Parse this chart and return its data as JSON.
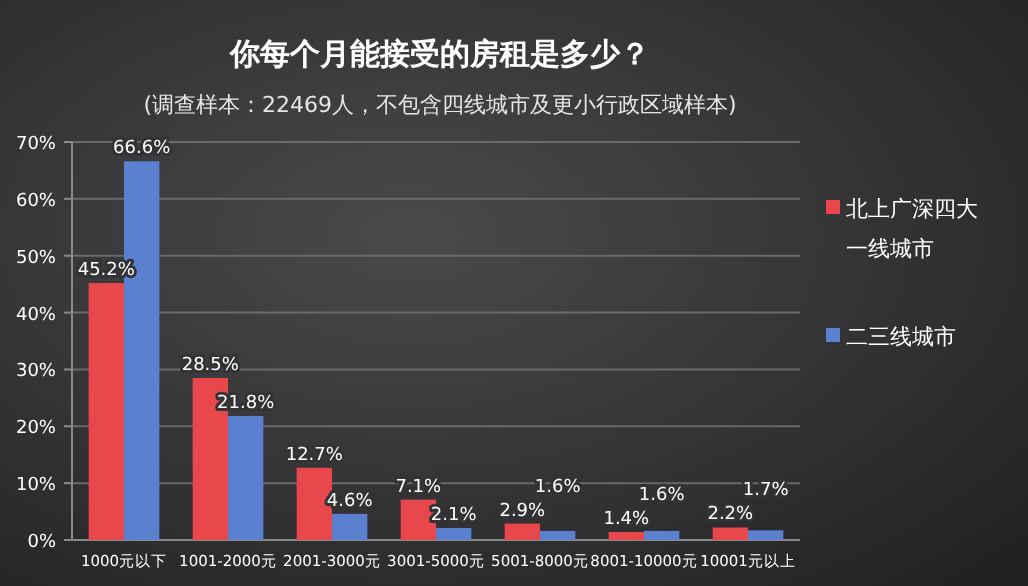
{
  "chart_data": {
    "type": "bar",
    "title": "你每个月能接受的房租是多少？",
    "subtitle": "(调查样本：22469人，不包含四线城市及更小行政区域样本)",
    "categories": [
      "1000元以下",
      "1001-2000元",
      "2001-3000元",
      "3001-5000元",
      "5001-8000元",
      "8001-10000元",
      "10001元以上"
    ],
    "series": [
      {
        "name": "北上广深四大一线城市",
        "color": "#e8474b",
        "values": [
          45.2,
          28.5,
          12.7,
          7.1,
          2.9,
          1.4,
          2.2
        ],
        "value_labels": [
          "45.2%",
          "28.5%",
          "12.7%",
          "7.1%",
          "2.9%",
          "1.4%",
          "2.2%"
        ]
      },
      {
        "name": "二三线城市",
        "color": "#5b80cf",
        "values": [
          66.6,
          21.8,
          4.6,
          2.1,
          1.6,
          1.6,
          1.7
        ],
        "value_labels": [
          "66.6%",
          "21.8%",
          "4.6%",
          "2.1%",
          "1.6%",
          "1.6%",
          "1.7%"
        ]
      }
    ],
    "ylim": [
      0,
      70
    ],
    "yticks": [
      {
        "value": 0,
        "label": "0%"
      },
      {
        "value": 10,
        "label": "10%"
      },
      {
        "value": 20,
        "label": "20%"
      },
      {
        "value": 30,
        "label": "30%"
      },
      {
        "value": 40,
        "label": "40%"
      },
      {
        "value": 50,
        "label": "50%"
      },
      {
        "value": 60,
        "label": "60%"
      },
      {
        "value": 70,
        "label": "70%"
      }
    ],
    "grid": "y",
    "legend": "right"
  }
}
